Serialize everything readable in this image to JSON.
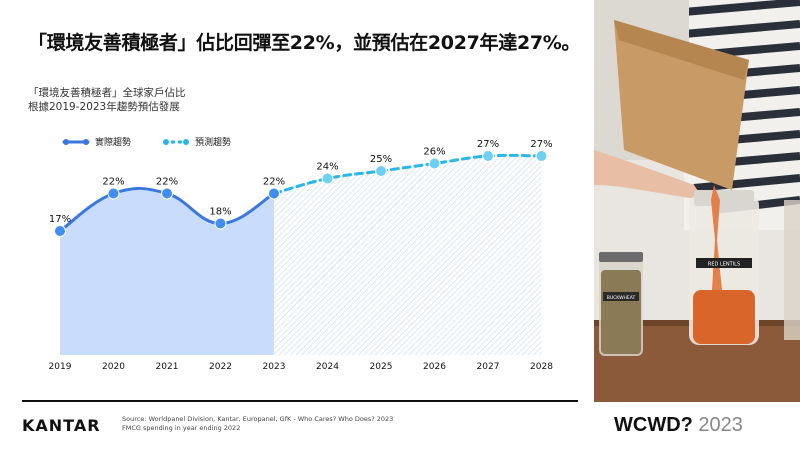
{
  "headline": "「環境友善積極者」佔比回彈至22%，並預估在2027年達27%。",
  "subtitle": {
    "line1": "「環境友善積極者」全球家戶佔比",
    "line2": "根據2019-2023年趨勢預估發展"
  },
  "legend": {
    "actual": "實際趨勢",
    "forecast": "預測趨勢"
  },
  "chart_data": {
    "type": "line",
    "x": [
      "2019",
      "2020",
      "2021",
      "2022",
      "2023",
      "2024",
      "2025",
      "2026",
      "2027",
      "2028"
    ],
    "series": [
      {
        "name": "實際趨勢",
        "x": [
          "2019",
          "2020",
          "2021",
          "2022",
          "2023"
        ],
        "values": [
          17,
          22,
          22,
          18,
          22
        ],
        "labels": [
          "17%",
          "22%",
          "22%",
          "18%",
          "22%"
        ],
        "style": "solid",
        "color": "#3a78e0"
      },
      {
        "name": "預測趨勢",
        "x": [
          "2023",
          "2024",
          "2025",
          "2026",
          "2027",
          "2028"
        ],
        "values": [
          22,
          24,
          25,
          26,
          27,
          27
        ],
        "labels": [
          "",
          "24%",
          "25%",
          "26%",
          "27%",
          "27%"
        ],
        "style": "dashed",
        "color": "#29b6e8"
      }
    ],
    "ylim": [
      0,
      32
    ],
    "grid": false,
    "legend_position": "top-left"
  },
  "footer": {
    "logo": "KANTAR",
    "source_line1": "Source: Worldpanel Division, Kantar, Europanel, GfK - Who Cares? Who Does? 2023",
    "source_line2": "FMCG spending in year ending 2022",
    "brand_main": "WCWD?",
    "brand_year": "2023"
  },
  "photo": {
    "jar_label_big": "RED LENTILS",
    "jar_label_small": "BUCKWHEAT"
  },
  "colors": {
    "actual_line": "#3a78e0",
    "actual_fill": "#c9dcfb",
    "forecast_line": "#29b6e8",
    "forecast_hatch": "#c8d8e6"
  }
}
